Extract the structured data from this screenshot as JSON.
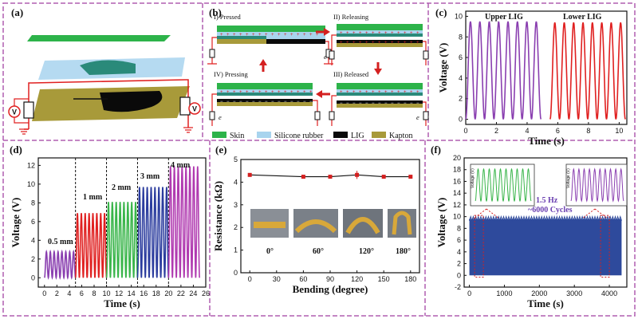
{
  "panels": {
    "a": {
      "label": "(a)"
    },
    "b": {
      "label": "(b)",
      "stages": [
        "I) Pressed",
        "II) Releasing",
        "III) Released",
        "IV) Pressing"
      ],
      "legend": [
        "Skin",
        "Silicone rubber",
        "LIG",
        "Kapton"
      ],
      "electron": "e"
    },
    "c": {
      "label": "(c)",
      "annotations": [
        "Upper LIG",
        "Lower LIG"
      ]
    },
    "d": {
      "label": "(d)",
      "annotations": [
        "0.5 mm",
        "1 mm",
        "2 mm",
        "3 mm",
        "4 mm"
      ]
    },
    "e": {
      "label": "(e)",
      "photo_labels": [
        "0°",
        "60°",
        "120°",
        "180°"
      ]
    },
    "f": {
      "label": "(f)",
      "annotations": [
        "1.5 Hz",
        "~6000 Cycles"
      ],
      "inset_ylabel": "Voltage (V)"
    }
  },
  "colors": {
    "frame": "#b05fb0",
    "purple": "#8a3fb0",
    "red": "#e02020",
    "green": "#39b54a",
    "blue": "#2b3c9e",
    "magenta": "#b03ab0",
    "navy": "#2e4a9c",
    "skin": "#2db34a",
    "silicone": "#a8d4ee",
    "lig": "#111111",
    "kapton": "#a89a3a"
  },
  "chart_data": [
    {
      "panel": "c",
      "type": "line",
      "xlabel": "Time (s)",
      "ylabel": "Voltage (V)",
      "xlim": [
        0,
        10.5
      ],
      "ylim": [
        -0.5,
        10.5
      ],
      "xticks": [
        0,
        2,
        4,
        6,
        8,
        10
      ],
      "yticks": [
        0,
        2,
        4,
        6,
        8,
        10
      ],
      "series": [
        {
          "name": "Upper LIG",
          "color": "#8a3fb0",
          "x_range": [
            0,
            4.9
          ],
          "cycles": 8,
          "min": 0,
          "max": 9.5
        },
        {
          "name": "Lower LIG",
          "color": "#e02020",
          "x_range": [
            5.5,
            10.4
          ],
          "cycles": 8,
          "min": 0,
          "max": 9.4
        }
      ]
    },
    {
      "panel": "d",
      "type": "line",
      "xlabel": "Time (s)",
      "ylabel": "Voltage (V)",
      "xlim": [
        -1,
        26
      ],
      "ylim": [
        -1,
        12.8
      ],
      "xticks": [
        0,
        2,
        4,
        6,
        8,
        10,
        12,
        14,
        16,
        18,
        20,
        22,
        24,
        26
      ],
      "yticks": [
        0,
        2,
        4,
        6,
        8,
        10,
        12
      ],
      "dividers": [
        5,
        10,
        15,
        20
      ],
      "series": [
        {
          "name": "0.5 mm",
          "color": "#8a3fb0",
          "x_range": [
            0,
            5
          ],
          "cycles": 8,
          "min": 0,
          "max": 2.8
        },
        {
          "name": "1 mm",
          "color": "#e02020",
          "x_range": [
            5,
            10
          ],
          "cycles": 8,
          "min": 0,
          "max": 6.9
        },
        {
          "name": "2 mm",
          "color": "#39b54a",
          "x_range": [
            10,
            15
          ],
          "cycles": 8,
          "min": 0,
          "max": 8.1
        },
        {
          "name": "3 mm",
          "color": "#2b3c9e",
          "x_range": [
            15,
            20
          ],
          "cycles": 8,
          "min": 0,
          "max": 9.7
        },
        {
          "name": "4 mm",
          "color": "#b03ab0",
          "x_range": [
            20,
            25
          ],
          "cycles": 8,
          "min": 0,
          "max": 11.9
        }
      ]
    },
    {
      "panel": "e",
      "type": "line",
      "xlabel": "Bending (degree)",
      "ylabel": "Resistance (kΩ)",
      "xlim": [
        -10,
        190
      ],
      "ylim": [
        0,
        5
      ],
      "xticks": [
        0,
        30,
        60,
        90,
        120,
        150,
        180
      ],
      "yticks": [
        0,
        1,
        2,
        3,
        4,
        5
      ],
      "x": [
        0,
        60,
        90,
        120,
        150,
        180
      ],
      "y": [
        4.32,
        4.24,
        4.24,
        4.32,
        4.24,
        4.24
      ],
      "err": [
        0.02,
        0.03,
        0.03,
        0.18,
        0.03,
        0.03
      ]
    },
    {
      "panel": "f",
      "type": "area",
      "xlabel": "Time (s)",
      "ylabel": "Voltage (V)",
      "xlim": [
        -150,
        4500
      ],
      "ylim": [
        -2,
        20
      ],
      "xticks": [
        0,
        1000,
        2000,
        3000,
        4000
      ],
      "yticks": [
        -2,
        0,
        2,
        4,
        6,
        8,
        10,
        12,
        14,
        16,
        18,
        20
      ],
      "x_range": [
        0,
        4350
      ],
      "min": 0,
      "max": 9.6
    }
  ]
}
